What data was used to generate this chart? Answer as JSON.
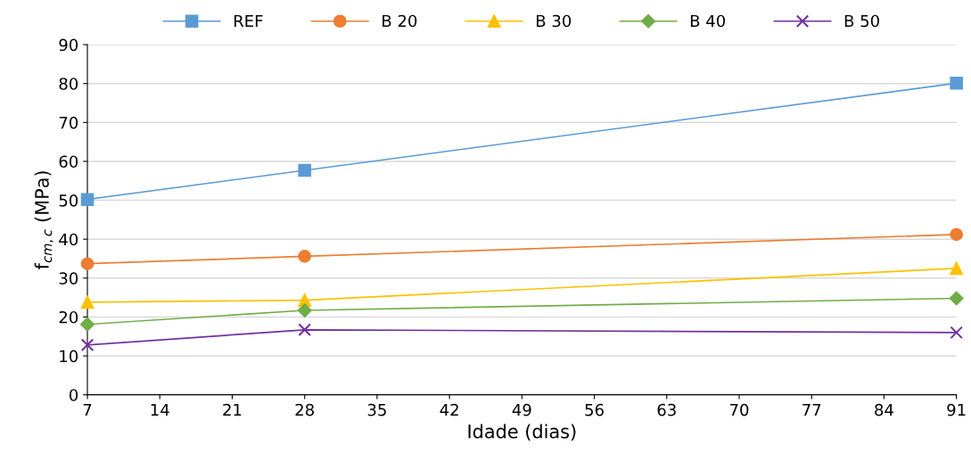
{
  "chart_data": {
    "type": "line",
    "xlabel": "Idade (dias)",
    "ylabel": "f$_{cm,c}$ (MPa)",
    "x": [
      7,
      28,
      91
    ],
    "series": [
      {
        "name": "REF",
        "color": "#5b9bd5",
        "marker": "square",
        "values": [
          50.2,
          57.7,
          80.1
        ]
      },
      {
        "name": "B 20",
        "color": "#ed7d31",
        "marker": "circle",
        "values": [
          33.7,
          35.6,
          41.2
        ]
      },
      {
        "name": "B 30",
        "color": "#ffc000",
        "marker": "triangle",
        "values": [
          23.8,
          24.3,
          32.5
        ]
      },
      {
        "name": "B 40",
        "color": "#70ad47",
        "marker": "diamond",
        "values": [
          18.1,
          21.7,
          24.8
        ]
      },
      {
        "name": "B 50",
        "color": "#7030a0",
        "marker": "cross",
        "values": [
          12.8,
          16.7,
          16.0
        ]
      }
    ],
    "xlim": [
      7,
      91
    ],
    "xticks": [
      7,
      14,
      21,
      28,
      35,
      42,
      49,
      56,
      63,
      70,
      77,
      84,
      91
    ],
    "ylim": [
      0,
      90
    ],
    "yticks": [
      0,
      10,
      20,
      30,
      40,
      50,
      60,
      70,
      80,
      90
    ],
    "grid": "y",
    "legend": "top"
  }
}
